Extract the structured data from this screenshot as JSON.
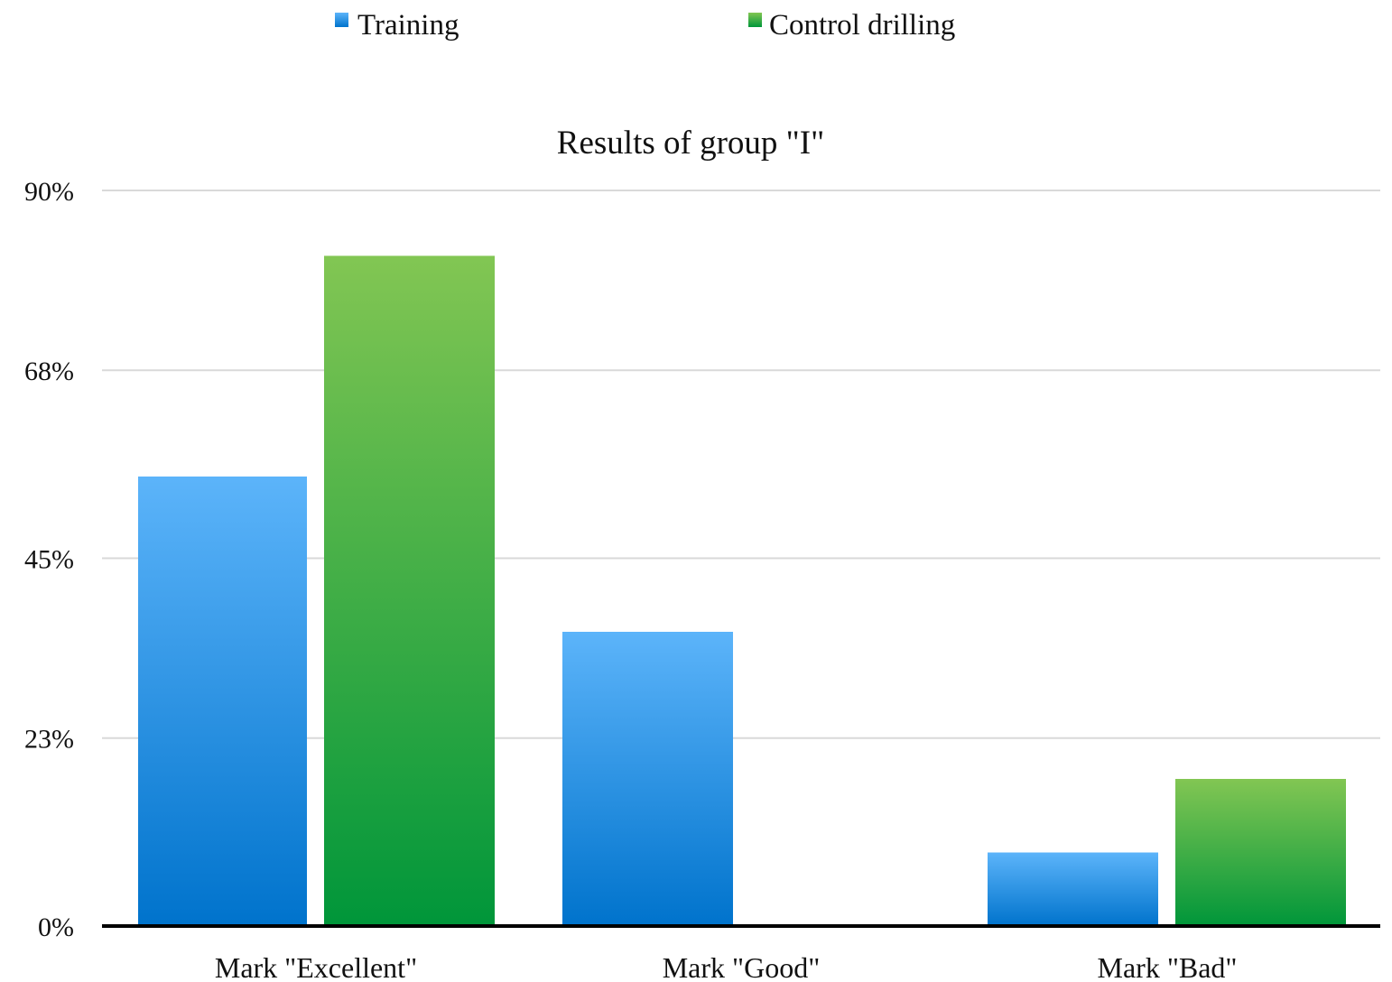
{
  "chart_data": {
    "type": "bar",
    "title": "Results of group \"I\"",
    "xlabel": "",
    "ylabel": "",
    "categories": [
      "Mark \"Excellent\"",
      "Mark \"Good\"",
      "Mark \"Bad\""
    ],
    "series": [
      {
        "name": "Training",
        "values": [
          55,
          36,
          9
        ],
        "color": "#1a8ee0"
      },
      {
        "name": "Control drilling",
        "values": [
          82,
          0,
          18
        ],
        "color": "#2fa83f"
      }
    ],
    "ylim": [
      0,
      90
    ],
    "y_ticks": [
      0,
      23,
      45,
      68,
      90
    ],
    "y_tick_labels": [
      "0%",
      "23%",
      "45%",
      "68%",
      "90%"
    ],
    "grid": true,
    "legend_position": "top"
  }
}
